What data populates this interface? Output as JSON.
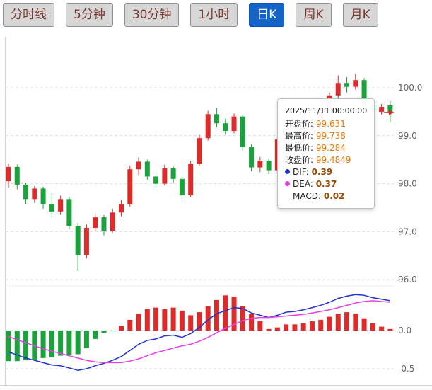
{
  "toolbar": {
    "tabs": [
      {
        "label": "分时线",
        "active": false
      },
      {
        "label": "5分钟",
        "active": false
      },
      {
        "label": "30分钟",
        "active": false
      },
      {
        "label": "1小时",
        "active": false
      },
      {
        "label": "日K",
        "active": true
      },
      {
        "label": "周K",
        "active": false
      },
      {
        "label": "月K",
        "active": false
      }
    ]
  },
  "tooltip": {
    "datetime": "2025/11/11 00:00:00",
    "rows": [
      {
        "label": "开盘价:",
        "value": "99.631"
      },
      {
        "label": "最高价:",
        "value": "99.738"
      },
      {
        "label": "最低价:",
        "value": "99.284"
      },
      {
        "label": "收盘价:",
        "value": "99.4849"
      }
    ],
    "indicator_rows": [
      {
        "dot_color": "#2233cc",
        "label": "DIF:",
        "value": "0.39"
      },
      {
        "dot_color": "#e53fe5",
        "label": "DEA:",
        "value": "0.37"
      },
      {
        "dot_color": null,
        "label": "MACD:",
        "value": "0.02"
      }
    ]
  },
  "chart_data": {
    "type": "candlestick+macd",
    "title": "",
    "price_axis_ticks": [
      "100.0",
      "99.0",
      "98.0",
      "97.0",
      "96.0"
    ],
    "macd_axis_ticks": [
      "0.0",
      "-0.5"
    ],
    "grid": true,
    "legend_position": "none",
    "colors": {
      "up": "#dd2b2b",
      "down": "#1ba23c",
      "dif": "#2233cc",
      "dea": "#e53fe5",
      "grid": "#dddddd",
      "axis_text": "#666666",
      "active_tab_bg": "#1463c6",
      "tab_text": "#7a3b30"
    },
    "candles": [
      [
        98.05,
        98.42,
        97.92,
        98.35
      ],
      [
        98.35,
        98.4,
        97.88,
        97.98
      ],
      [
        97.98,
        98.02,
        97.58,
        97.68
      ],
      [
        97.68,
        97.95,
        97.6,
        97.9
      ],
      [
        97.9,
        97.94,
        97.48,
        97.58
      ],
      [
        97.58,
        97.8,
        97.3,
        97.42
      ],
      [
        97.42,
        97.75,
        97.35,
        97.68
      ],
      [
        97.68,
        97.72,
        97.05,
        97.12
      ],
      [
        97.12,
        97.18,
        96.18,
        96.52
      ],
      [
        96.52,
        97.15,
        96.45,
        97.08
      ],
      [
        97.08,
        97.38,
        97.0,
        97.3
      ],
      [
        97.3,
        97.35,
        96.92,
        97.02
      ],
      [
        97.02,
        97.48,
        96.98,
        97.4
      ],
      [
        97.4,
        97.66,
        97.32,
        97.58
      ],
      [
        97.58,
        98.38,
        97.52,
        98.3
      ],
      [
        98.3,
        98.55,
        98.18,
        98.46
      ],
      [
        98.46,
        98.5,
        98.08,
        98.15
      ],
      [
        98.15,
        98.22,
        97.92,
        98.0
      ],
      [
        98.0,
        98.4,
        97.96,
        98.32
      ],
      [
        98.32,
        98.36,
        98.02,
        98.1
      ],
      [
        98.1,
        98.14,
        97.68,
        97.76
      ],
      [
        97.76,
        98.48,
        97.72,
        98.42
      ],
      [
        98.42,
        99.02,
        98.38,
        98.95
      ],
      [
        98.95,
        99.52,
        98.9,
        99.45
      ],
      [
        99.45,
        99.58,
        99.18,
        99.26
      ],
      [
        99.26,
        99.36,
        99.02,
        99.1
      ],
      [
        99.1,
        99.46,
        99.05,
        99.4
      ],
      [
        99.4,
        99.44,
        98.68,
        98.76
      ],
      [
        98.76,
        98.82,
        98.26,
        98.34
      ],
      [
        98.34,
        98.56,
        98.24,
        98.48
      ],
      [
        98.48,
        98.52,
        98.2,
        98.28
      ],
      [
        98.28,
        98.98,
        98.24,
        98.92
      ],
      [
        98.92,
        99.1,
        98.82,
        99.02
      ],
      [
        99.02,
        99.08,
        98.82,
        98.9
      ],
      [
        98.9,
        99.24,
        98.86,
        99.18
      ],
      [
        99.18,
        99.4,
        99.12,
        99.34
      ],
      [
        99.34,
        99.6,
        99.28,
        99.54
      ],
      [
        99.54,
        99.9,
        99.48,
        99.84
      ],
      [
        99.84,
        100.26,
        99.78,
        100.1
      ],
      [
        100.1,
        100.22,
        99.9,
        100.02
      ],
      [
        100.02,
        100.3,
        99.96,
        100.16
      ],
      [
        100.16,
        100.2,
        99.55,
        99.64
      ],
      [
        99.64,
        99.72,
        99.42,
        99.5
      ],
      [
        99.5,
        99.66,
        99.44,
        99.6
      ],
      [
        99.631,
        99.738,
        99.284,
        99.4849
      ]
    ],
    "dif": [
      -0.28,
      -0.32,
      -0.36,
      -0.39,
      -0.42,
      -0.45,
      -0.46,
      -0.49,
      -0.52,
      -0.5,
      -0.46,
      -0.43,
      -0.39,
      -0.34,
      -0.26,
      -0.18,
      -0.13,
      -0.11,
      -0.07,
      -0.06,
      -0.09,
      -0.04,
      0.04,
      0.14,
      0.22,
      0.26,
      0.3,
      0.29,
      0.23,
      0.2,
      0.17,
      0.2,
      0.24,
      0.25,
      0.27,
      0.3,
      0.33,
      0.37,
      0.42,
      0.45,
      0.47,
      0.46,
      0.43,
      0.41,
      0.39
    ],
    "dea": [
      -0.08,
      -0.12,
      -0.16,
      -0.2,
      -0.24,
      -0.27,
      -0.3,
      -0.33,
      -0.36,
      -0.39,
      -0.41,
      -0.42,
      -0.42,
      -0.42,
      -0.4,
      -0.37,
      -0.33,
      -0.29,
      -0.26,
      -0.23,
      -0.2,
      -0.18,
      -0.14,
      -0.09,
      -0.03,
      0.03,
      0.08,
      0.13,
      0.16,
      0.17,
      0.17,
      0.18,
      0.19,
      0.2,
      0.21,
      0.23,
      0.25,
      0.27,
      0.3,
      0.33,
      0.36,
      0.38,
      0.39,
      0.38,
      0.37
    ],
    "macd": [
      -0.4,
      -0.4,
      -0.39,
      -0.38,
      -0.36,
      -0.35,
      -0.33,
      -0.32,
      -0.31,
      -0.23,
      -0.11,
      -0.03,
      -0.01,
      0.06,
      0.14,
      0.22,
      0.28,
      0.3,
      0.28,
      0.3,
      0.26,
      0.2,
      0.24,
      0.32,
      0.4,
      0.46,
      0.44,
      0.32,
      0.22,
      0.12,
      0.02,
      0.04,
      0.08,
      0.08,
      0.1,
      0.12,
      0.14,
      0.18,
      0.22,
      0.24,
      0.22,
      0.16,
      0.1,
      0.05,
      0.02
    ],
    "last_price": 99.4849
  }
}
